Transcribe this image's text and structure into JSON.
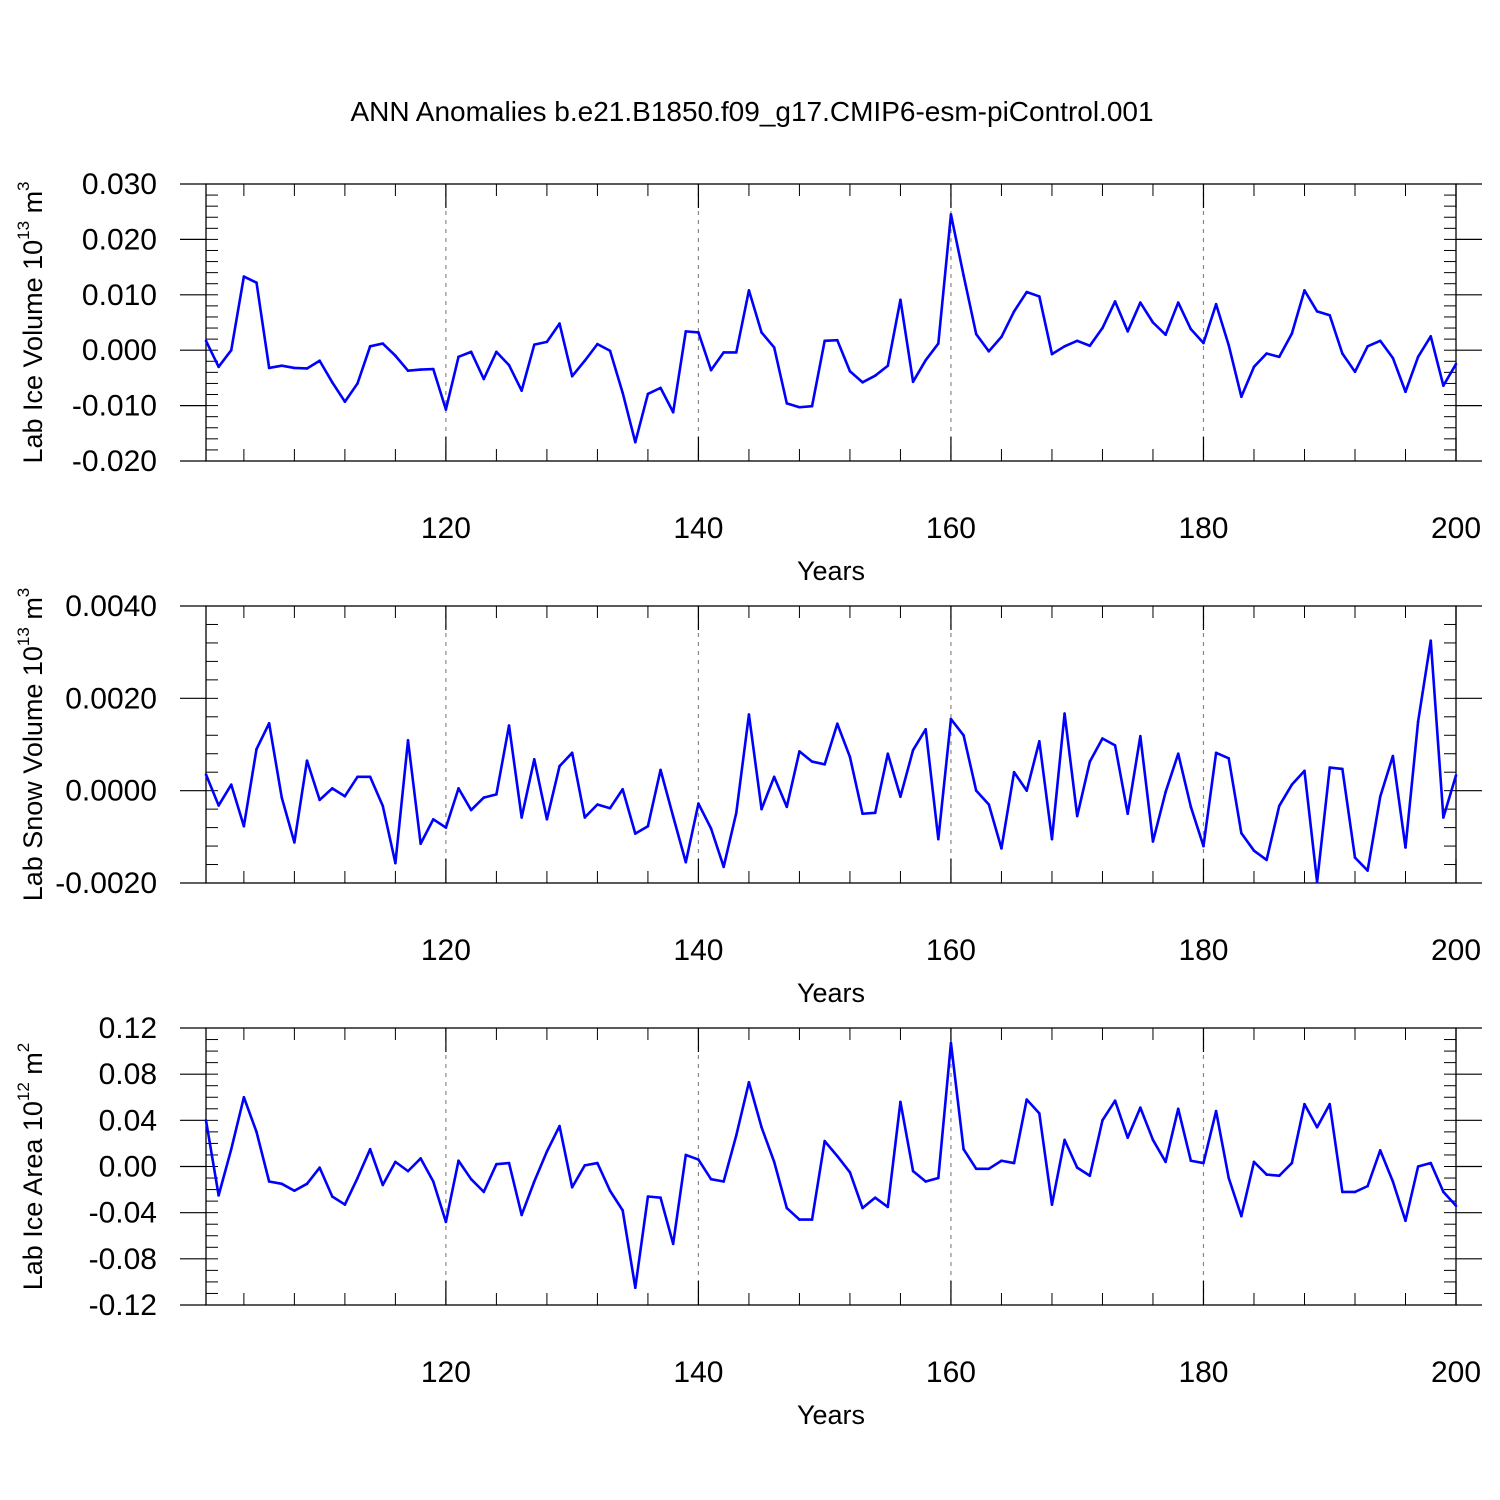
{
  "title": "ANN Anomalies b.e21.B1850.f09_g17.CMIP6-esm-piControl.001",
  "chart_data": [
    {
      "type": "line",
      "ylabel": "Lab Ice Volume 10",
      "ylabel_exp": "13",
      "ylabel_unit": " m",
      "ylabel_unit_exp": "3",
      "xlabel": "Years",
      "xlim": [
        101,
        200
      ],
      "ylim": [
        -0.02,
        0.03
      ],
      "x_ticks": [
        "120",
        "140",
        "160",
        "180",
        "200"
      ],
      "x_tick_values": [
        120,
        140,
        160,
        180,
        200
      ],
      "y_ticks": [
        "0.030",
        "0.020",
        "0.010",
        "0.000",
        "-0.010",
        "-0.020"
      ],
      "y_tick_values": [
        0.03,
        0.02,
        0.01,
        0.0,
        -0.01,
        -0.02
      ],
      "x_minor_step": 4,
      "y_minor_step": 0.002,
      "grid": "dashed vertical lines at major x ticks",
      "color": "#0000ff",
      "x_start": 101,
      "values": [
        0.0017,
        -0.003,
        0.0,
        0.0133,
        0.0122,
        -0.0032,
        -0.0028,
        -0.0032,
        -0.0033,
        -0.0019,
        -0.0058,
        -0.0093,
        -0.006,
        0.0007,
        0.0012,
        -0.001,
        -0.0037,
        -0.0035,
        -0.0034,
        -0.0107,
        -0.0012,
        -0.0003,
        -0.0052,
        -0.0003,
        -0.0027,
        -0.0073,
        0.001,
        0.0015,
        0.0048,
        -0.0047,
        -0.0019,
        0.0011,
        -0.0001,
        -0.0077,
        -0.0166,
        -0.0079,
        -0.0068,
        -0.0112,
        0.0034,
        0.0032,
        -0.0036,
        -0.0004,
        -0.0004,
        0.0108,
        0.0032,
        0.0005,
        -0.0096,
        -0.0103,
        -0.0101,
        0.0017,
        0.0018,
        -0.0038,
        -0.0058,
        -0.0046,
        -0.0028,
        0.0091,
        -0.0057,
        -0.0018,
        0.0012,
        0.0245,
        0.0135,
        0.0029,
        -0.0002,
        0.0024,
        0.007,
        0.0105,
        0.0097,
        -0.0007,
        0.0007,
        0.0017,
        0.0008,
        0.004,
        0.0088,
        0.0034,
        0.0086,
        0.005,
        0.0028,
        0.0086,
        0.0038,
        0.0013,
        0.0083,
        0.0009,
        -0.0084,
        -0.003,
        -0.0006,
        -0.0012,
        0.003,
        0.0108,
        0.007,
        0.0063,
        -0.0006,
        -0.0039,
        0.0007,
        0.0017,
        -0.0014,
        -0.0075,
        -0.0012,
        0.0025,
        -0.0064,
        -0.0025
      ]
    },
    {
      "type": "line",
      "ylabel": "Lab Snow Volume 10",
      "ylabel_exp": "13",
      "ylabel_unit": " m",
      "ylabel_unit_exp": "3",
      "xlabel": "Years",
      "xlim": [
        101,
        200
      ],
      "ylim": [
        -0.002,
        0.004
      ],
      "x_ticks": [
        "120",
        "140",
        "160",
        "180",
        "200"
      ],
      "x_tick_values": [
        120,
        140,
        160,
        180,
        200
      ],
      "y_ticks": [
        "0.0040",
        "0.0020",
        "0.0000",
        "-0.0020"
      ],
      "y_tick_values": [
        0.004,
        0.002,
        0.0,
        -0.002
      ],
      "x_minor_step": 4,
      "y_minor_step": 0.0004,
      "grid": "dashed vertical lines at major x ticks",
      "color": "#0000ff",
      "x_start": 101,
      "values": [
        0.00035,
        -0.00032,
        0.00013,
        -0.00077,
        0.0009,
        0.00146,
        -0.00015,
        -0.00112,
        0.00065,
        -0.0002,
        5e-05,
        -0.00012,
        0.0003,
        0.0003,
        -0.00033,
        -0.00157,
        0.00109,
        -0.00115,
        -0.00062,
        -0.0008,
        5e-05,
        -0.00042,
        -0.00015,
        -8e-05,
        0.00141,
        -0.00058,
        0.00068,
        -0.00062,
        0.00053,
        0.00082,
        -0.00058,
        -0.0003,
        -0.00038,
        3e-05,
        -0.00093,
        -0.00077,
        0.00045,
        -0.00056,
        -0.00155,
        -0.00028,
        -0.00082,
        -0.00165,
        -0.00048,
        0.00165,
        -0.0004,
        0.0003,
        -0.00035,
        0.00085,
        0.00063,
        0.00057,
        0.00145,
        0.00073,
        -0.0005,
        -0.00048,
        0.0008,
        -0.00013,
        0.00088,
        0.00133,
        -0.00105,
        0.00155,
        0.0012,
        0.0,
        -0.0003,
        -0.00125,
        0.0004,
        0.0,
        0.00107,
        -0.00105,
        0.00167,
        -0.00055,
        0.00063,
        0.00113,
        0.00098,
        -0.0005,
        0.00118,
        -0.0011,
        -3e-05,
        0.0008,
        -0.00035,
        -0.0012,
        0.00082,
        0.0007,
        -0.00092,
        -0.0013,
        -0.0015,
        -0.00033,
        0.00013,
        0.00043,
        -0.00198,
        0.0005,
        0.00047,
        -0.00145,
        -0.00173,
        -0.00013,
        0.00075,
        -0.00123,
        0.0015,
        0.00325,
        -0.00058,
        0.00033
      ]
    },
    {
      "type": "line",
      "ylabel": "Lab Ice Area 10",
      "ylabel_exp": "12",
      "ylabel_unit": " m",
      "ylabel_unit_exp": "2",
      "xlabel": "Years",
      "xlim": [
        101,
        200
      ],
      "ylim": [
        -0.12,
        0.12
      ],
      "x_ticks": [
        "120",
        "140",
        "160",
        "180",
        "200"
      ],
      "x_tick_values": [
        120,
        140,
        160,
        180,
        200
      ],
      "y_ticks": [
        "0.12",
        "0.08",
        "0.04",
        "0.00",
        "-0.04",
        "-0.08",
        "-0.12"
      ],
      "y_tick_values": [
        0.12,
        0.08,
        0.04,
        0.0,
        -0.04,
        -0.08,
        -0.12
      ],
      "x_minor_step": 4,
      "y_minor_step": 0.01,
      "grid": "dashed vertical lines at major x ticks",
      "color": "#0000ff",
      "x_start": 101,
      "values": [
        0.04,
        -0.025,
        0.015,
        0.06,
        0.03,
        -0.013,
        -0.015,
        -0.021,
        -0.015,
        -0.001,
        -0.026,
        -0.033,
        -0.01,
        0.015,
        -0.016,
        0.004,
        -0.004,
        0.007,
        -0.013,
        -0.048,
        0.005,
        -0.011,
        -0.022,
        0.002,
        0.003,
        -0.042,
        -0.013,
        0.013,
        0.035,
        -0.018,
        0.001,
        0.003,
        -0.021,
        -0.038,
        -0.105,
        -0.026,
        -0.027,
        -0.067,
        0.01,
        0.006,
        -0.011,
        -0.013,
        0.027,
        0.073,
        0.034,
        0.004,
        -0.036,
        -0.046,
        -0.046,
        0.022,
        0.009,
        -0.005,
        -0.036,
        -0.027,
        -0.035,
        0.056,
        -0.004,
        -0.013,
        -0.01,
        0.107,
        0.015,
        -0.002,
        -0.002,
        0.005,
        0.003,
        0.058,
        0.046,
        -0.033,
        0.023,
        -0.001,
        -0.008,
        0.04,
        0.057,
        0.025,
        0.051,
        0.023,
        0.004,
        0.05,
        0.005,
        0.003,
        0.048,
        -0.01,
        -0.043,
        0.004,
        -0.007,
        -0.008,
        0.003,
        0.054,
        0.034,
        0.054,
        -0.022,
        -0.022,
        -0.017,
        0.014,
        -0.013,
        -0.047,
        0.0,
        0.003,
        -0.022,
        -0.034
      ]
    }
  ]
}
